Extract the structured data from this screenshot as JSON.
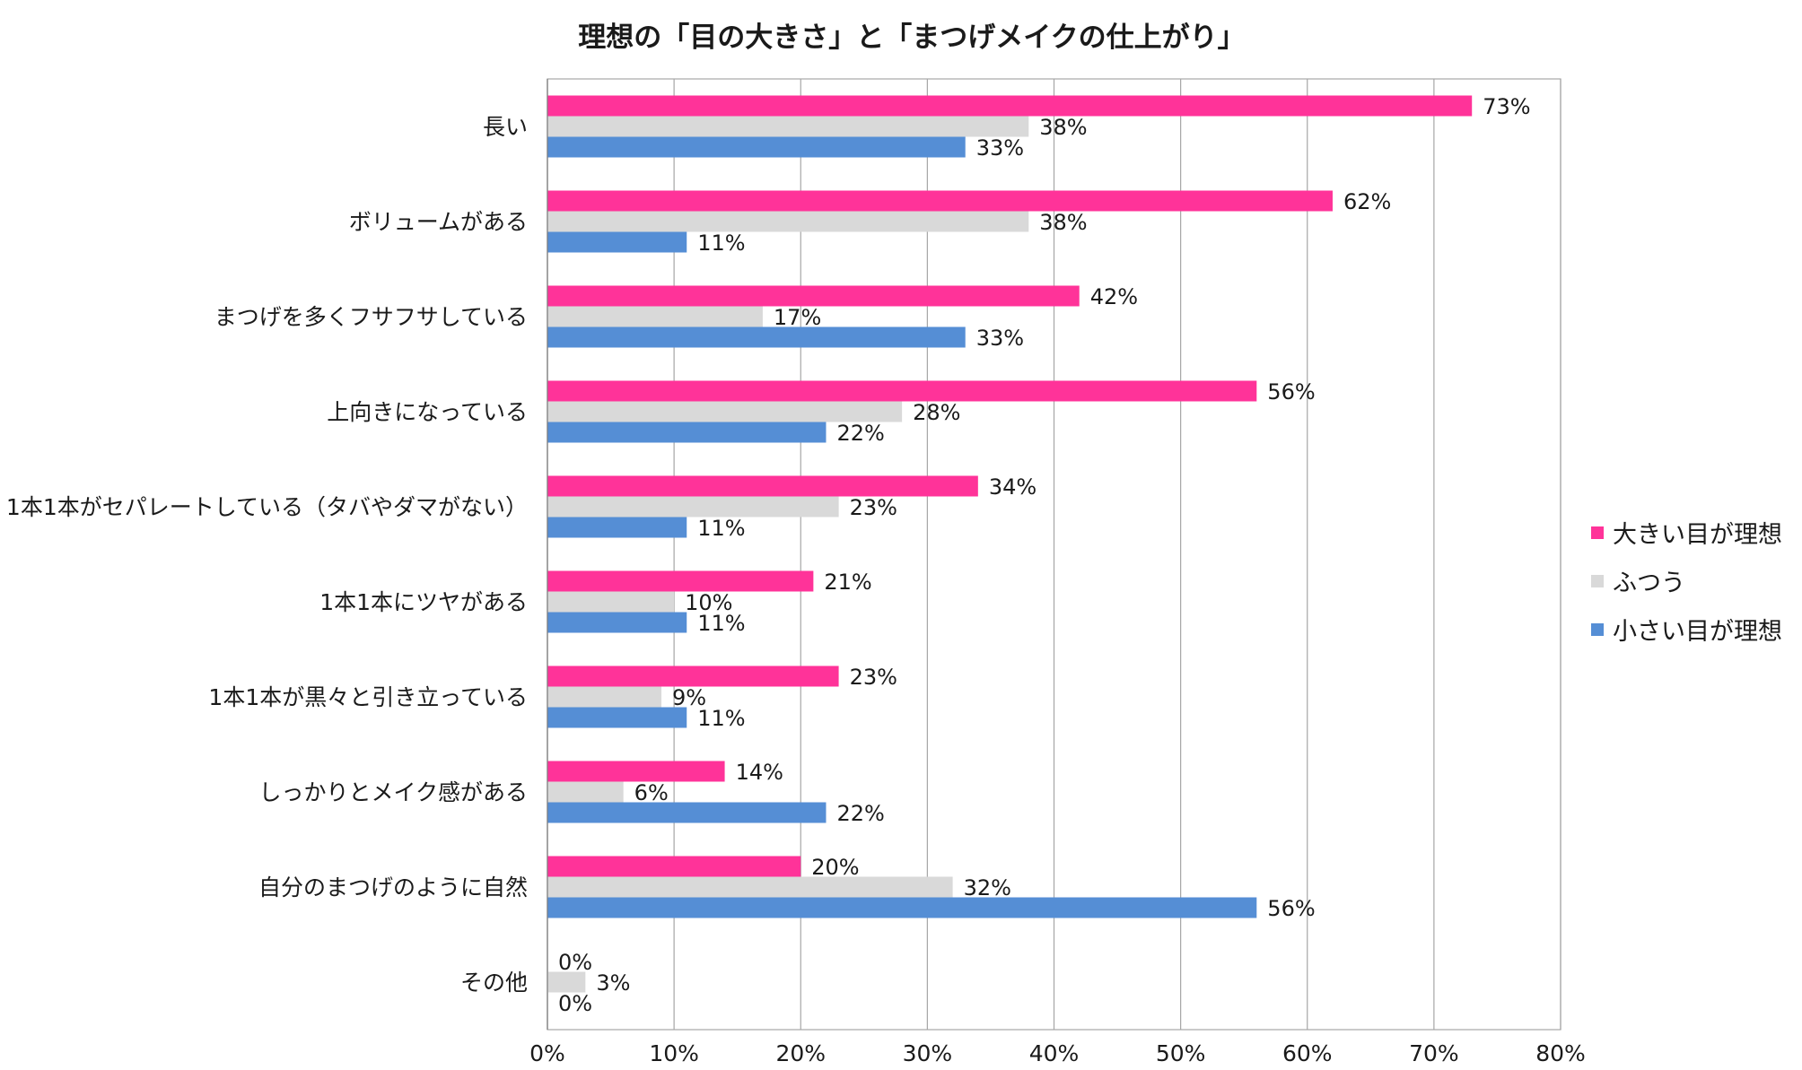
{
  "chart_data": {
    "type": "bar",
    "orientation": "horizontal",
    "title": "理想の「目の大きさ」と「まつげメイクの仕上がり」",
    "xlabel": "",
    "ylabel": "",
    "xlim": [
      0,
      80
    ],
    "x_ticks": [
      "0%",
      "10%",
      "20%",
      "30%",
      "40%",
      "50%",
      "60%",
      "70%",
      "80%"
    ],
    "grid": true,
    "legend_position": "right",
    "categories": [
      "長い",
      "ボリュームがある",
      "まつげを多くフサフサしている",
      "上向きになっている",
      "1本1本がセパレートしている（タバやダマがない）",
      "1本1本にツヤがある",
      "1本1本が黒々と引き立っている",
      "しっかりとメイク感がある",
      "自分のまつげのように自然",
      "その他"
    ],
    "series": [
      {
        "name": "大きい目が理想",
        "color": "#ff3399",
        "values": [
          73,
          62,
          42,
          56,
          34,
          21,
          23,
          14,
          20,
          0
        ],
        "labels": [
          "73%",
          "62%",
          "42%",
          "56%",
          "34%",
          "21%",
          "23%",
          "14%",
          "20%",
          "0%"
        ]
      },
      {
        "name": "ふつう",
        "color": "#d9d9d9",
        "values": [
          38,
          38,
          17,
          28,
          23,
          10,
          9,
          6,
          32,
          3
        ],
        "labels": [
          "38%",
          "38%",
          "17%",
          "28%",
          "23%",
          "10%",
          "9%",
          "6%",
          "32%",
          "3%"
        ]
      },
      {
        "name": "小さい目が理想",
        "color": "#558ed5",
        "values": [
          33,
          11,
          33,
          22,
          11,
          11,
          11,
          22,
          56,
          0
        ],
        "labels": [
          "33%",
          "11%",
          "33%",
          "22%",
          "11%",
          "11%",
          "11%",
          "22%",
          "56%",
          "0%"
        ]
      }
    ]
  }
}
